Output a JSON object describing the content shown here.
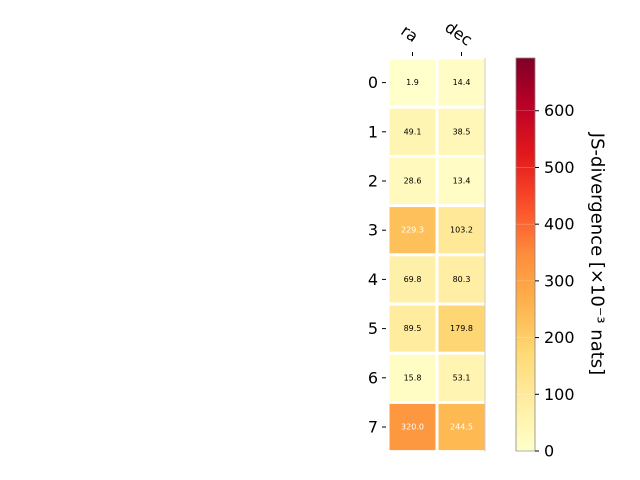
{
  "chart_data": {
    "type": "heatmap",
    "columns": [
      "ra",
      "dec"
    ],
    "rows": [
      "0",
      "1",
      "2",
      "3",
      "4",
      "5",
      "6",
      "7"
    ],
    "values": [
      [
        1.9,
        14.4
      ],
      [
        49.1,
        38.5
      ],
      [
        28.6,
        13.4
      ],
      [
        229.3,
        103.2
      ],
      [
        69.8,
        80.3
      ],
      [
        89.5,
        179.8
      ],
      [
        15.8,
        53.1
      ],
      [
        320.0,
        244.5
      ]
    ],
    "cell_labels": [
      [
        "1.9",
        "14.4"
      ],
      [
        "49.1",
        "38.5"
      ],
      [
        "28.6",
        "13.4"
      ],
      [
        "229.3",
        "103.2"
      ],
      [
        "69.8",
        "80.3"
      ],
      [
        "89.5",
        "179.8"
      ],
      [
        "15.8",
        "53.1"
      ],
      [
        "320.0",
        "244.5"
      ]
    ],
    "colorbar": {
      "label": "JS-divergence [×10⁻³ nats]",
      "min": 0,
      "max": 693,
      "ticks": [
        0,
        100,
        200,
        300,
        400,
        500,
        600
      ],
      "tick_labels": [
        "0",
        "100",
        "200",
        "300",
        "400",
        "500",
        "600"
      ],
      "colormap": "YlOrRd"
    },
    "colors": {
      "grid": "#ffffff",
      "dark_text": "#000000",
      "light_text": "#ffffff"
    }
  }
}
